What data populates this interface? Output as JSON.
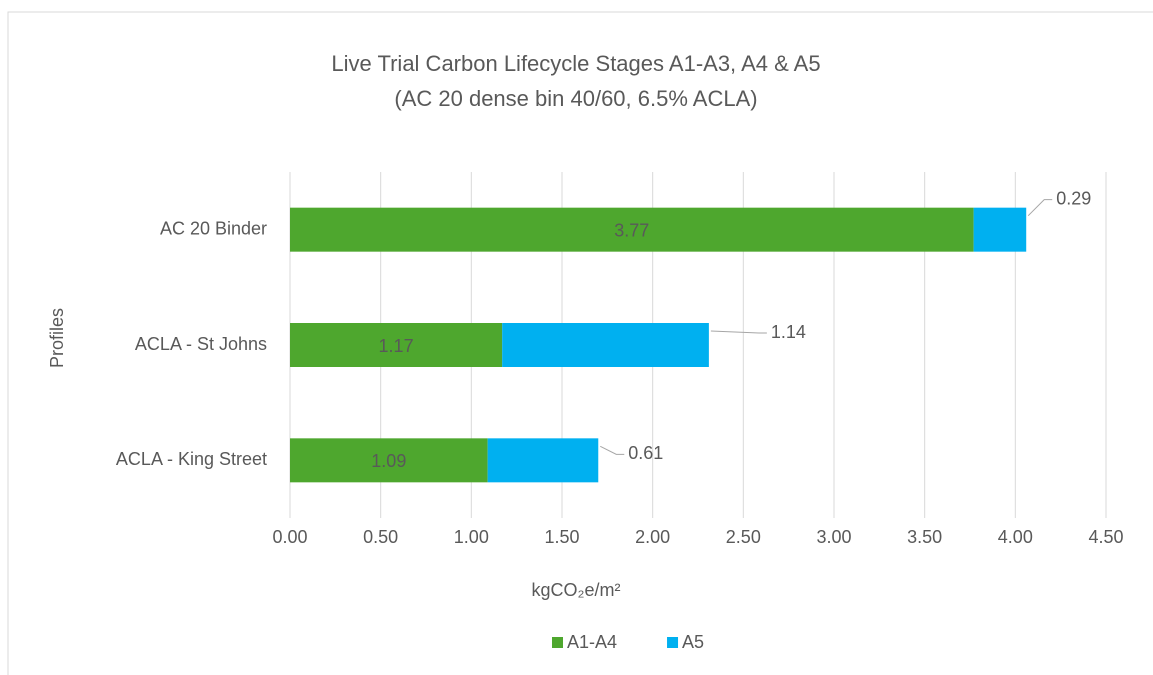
{
  "chart_data": {
    "type": "stacked_barh",
    "title": "Live Trial Carbon Lifecycle Stages A1-A3, A4 & A5",
    "subtitle": "(AC 20 dense bin 40/60, 6.5% ACLA)",
    "x_label": "kgCO₂e/m²",
    "y_label": "Profiles",
    "categories": [
      "AC 20 Binder",
      "ACLA - St Johns",
      "ACLA - King Street"
    ],
    "series": [
      {
        "name": "A1-A4",
        "color": "#4ea72e",
        "values": [
          3.77,
          1.17,
          1.09
        ]
      },
      {
        "name": "A5",
        "color": "#00b0f0",
        "values": [
          0.29,
          1.14,
          0.61
        ]
      }
    ],
    "xlim": [
      0,
      4.5
    ],
    "xticks": [
      {
        "value": 0,
        "label": "0.00"
      },
      {
        "value": 0.5,
        "label": "0.50"
      },
      {
        "value": 1,
        "label": "1.00"
      },
      {
        "value": 1.5,
        "label": "1.50"
      },
      {
        "value": 2,
        "label": "2.00"
      },
      {
        "value": 2.5,
        "label": "2.50"
      },
      {
        "value": 3,
        "label": "3.00"
      },
      {
        "value": 3.5,
        "label": "3.50"
      },
      {
        "value": 4,
        "label": "4.00"
      },
      {
        "value": 4.5,
        "label": "4.50"
      }
    ],
    "grid": true,
    "legend": "bottom"
  }
}
